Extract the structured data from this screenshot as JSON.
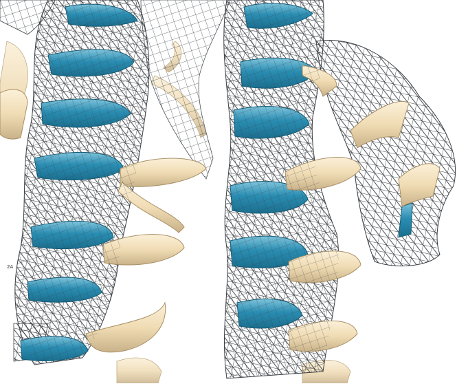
{
  "scene": {
    "description_label": "",
    "colors": {
      "background": "#ffffff",
      "helix_blue": "#2a8db2",
      "helix_blue_dark": "#1b6f8f",
      "helix_blue_light": "#7fc4dc",
      "helix_tan": "#f0dcb4",
      "helix_tan_dark": "#c9b28a",
      "helix_tan_light": "#fbf0d8",
      "mesh": "#3a3f44"
    },
    "icons": [
      "density-mesh",
      "blue-helix",
      "tan-helix"
    ]
  },
  "overlay": {
    "tiny_text": "2A"
  }
}
